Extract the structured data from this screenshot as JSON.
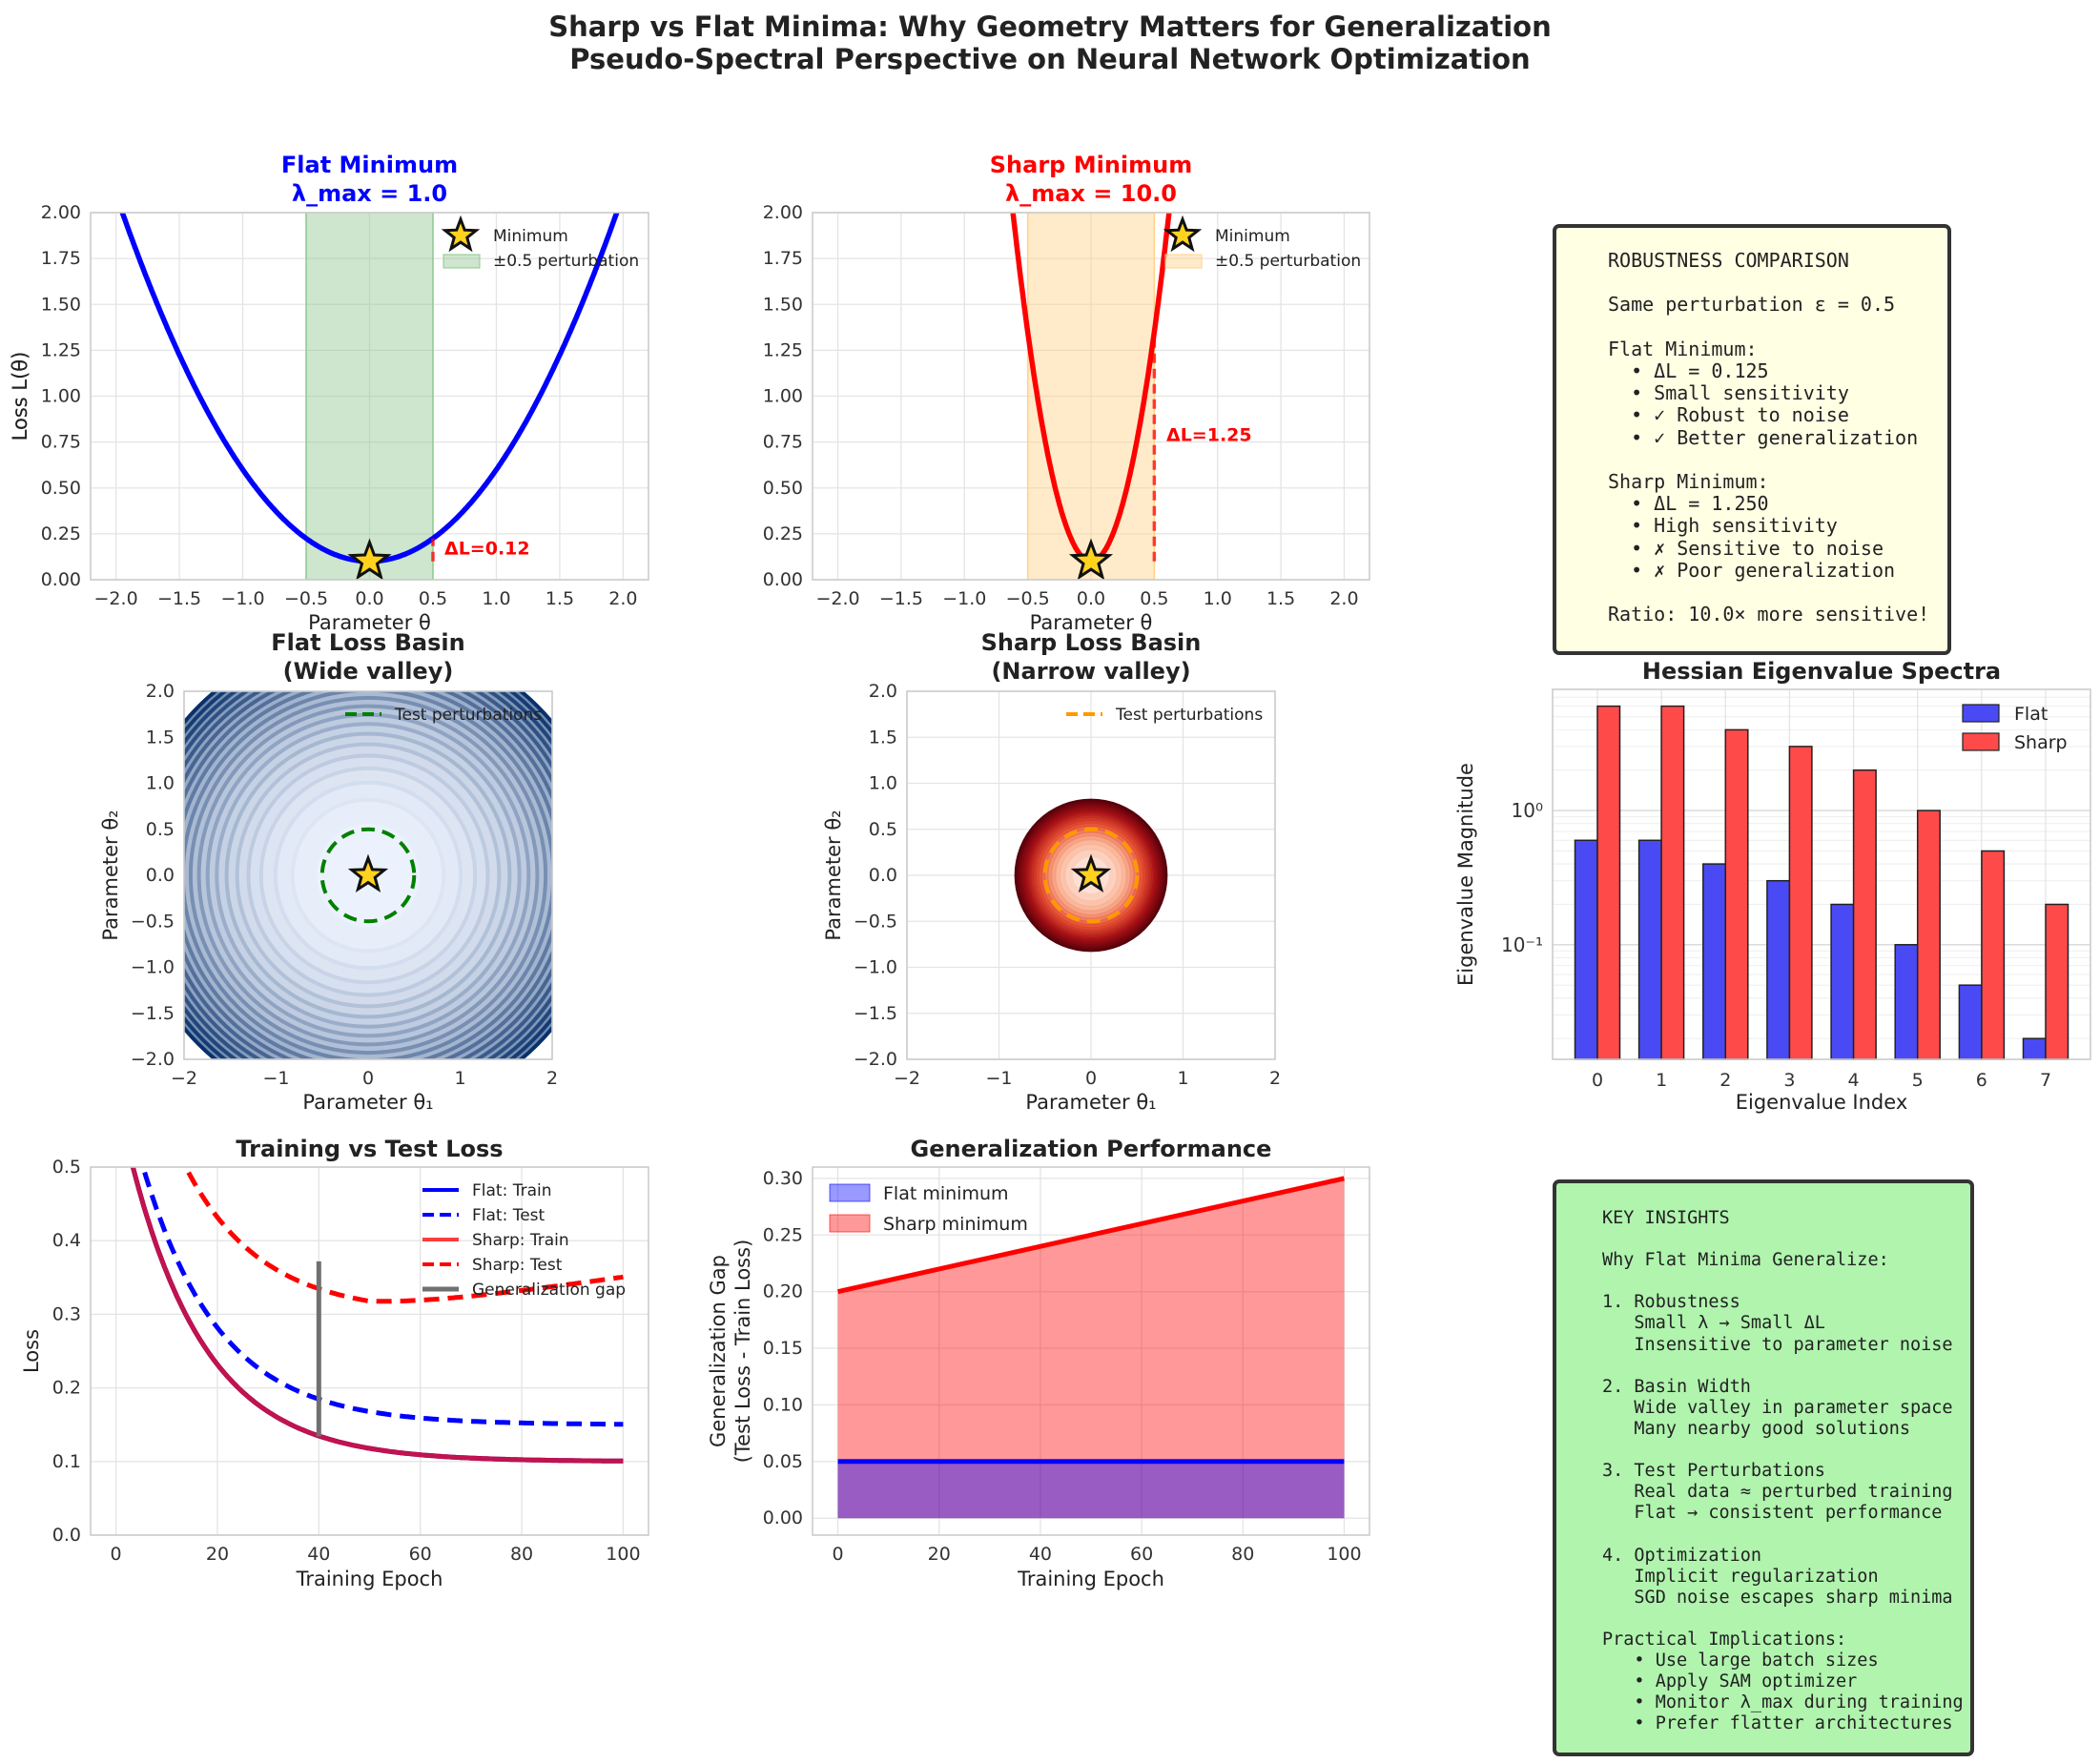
{
  "figure": {
    "title_line1": "Sharp vs Flat Minima: Why Geometry Matters for Generalization",
    "title_line2": "Pseudo-Spectral Perspective on Neural Network Optimization"
  },
  "colors": {
    "flat": "#0000ff",
    "sharp": "#ff0000",
    "flat_band": "#90c890",
    "sharp_band": "#ffd28a",
    "star": "#ffd21e",
    "flat_bar": "#4a4af5",
    "sharp_bar": "#ff4a4a",
    "robust_box_bg": "#ffffe4",
    "insights_box_bg": "#b0f4ae",
    "train_mix": "#c0144e",
    "gap_line": "#707070",
    "flat_ring": "#008000",
    "sharp_ring": "#ff9900"
  },
  "chart_data": [
    {
      "id": "flat_minimum",
      "type": "line",
      "title_line1": "Flat Minimum",
      "title_line2": "λ_max = 1.0",
      "xlabel": "Parameter θ",
      "ylabel": "Loss L(θ)",
      "xlim": [
        -2.2,
        2.2
      ],
      "ylim": [
        0,
        2
      ],
      "xticks": [
        "−2.0",
        "−1.5",
        "−1.0",
        "−0.5",
        "0.0",
        "0.5",
        "1.0",
        "1.5",
        "2.0"
      ],
      "xtick_values": [
        -2,
        -1.5,
        -1,
        -0.5,
        0,
        0.5,
        1,
        1.5,
        2
      ],
      "yticks": [
        "0.00",
        "0.25",
        "0.50",
        "0.75",
        "1.00",
        "1.25",
        "1.50",
        "1.75",
        "2.00"
      ],
      "ytick_values": [
        0,
        0.25,
        0.5,
        0.75,
        1,
        1.25,
        1.5,
        1.75,
        2
      ],
      "curvature": 1.0,
      "offset": 0.1,
      "minimum": {
        "x": 0,
        "y": 0.1
      },
      "perturbation": [
        -0.5,
        0.5
      ],
      "delta_label": "ΔL=0.12",
      "delta_value": 0.125,
      "legend": [
        "Minimum",
        "±0.5 perturbation"
      ]
    },
    {
      "id": "sharp_minimum",
      "type": "line",
      "title_line1": "Sharp Minimum",
      "title_line2": "λ_max = 10.0",
      "xlabel": "Parameter θ",
      "ylabel": "Loss L(θ)",
      "xlim": [
        -2.2,
        2.2
      ],
      "ylim": [
        0,
        2
      ],
      "xticks": [
        "−2.0",
        "−1.5",
        "−1.0",
        "−0.5",
        "0.0",
        "0.5",
        "1.0",
        "1.5",
        "2.0"
      ],
      "xtick_values": [
        -2,
        -1.5,
        -1,
        -0.5,
        0,
        0.5,
        1,
        1.5,
        2
      ],
      "yticks": [
        "0.00",
        "0.25",
        "0.50",
        "0.75",
        "1.00",
        "1.25",
        "1.50",
        "1.75",
        "2.00"
      ],
      "ytick_values": [
        0,
        0.25,
        0.5,
        0.75,
        1,
        1.25,
        1.5,
        1.75,
        2
      ],
      "curvature": 10.0,
      "offset": 0.1,
      "minimum": {
        "x": 0,
        "y": 0.1
      },
      "perturbation": [
        -0.5,
        0.5
      ],
      "delta_label": "ΔL=1.25",
      "delta_value": 1.25,
      "legend": [
        "Minimum",
        "±0.5 perturbation"
      ]
    },
    {
      "id": "flat_basin",
      "type": "contour",
      "title_line1": "Flat Loss Basin",
      "title_line2": "(Wide valley)",
      "xlabel": "Parameter θ₁",
      "ylabel": "Parameter θ₂",
      "xlim": [
        -2,
        2
      ],
      "ylim": [
        -2,
        2
      ],
      "xticks": [
        "−2",
        "−1",
        "0",
        "1",
        "2"
      ],
      "xtick_values": [
        -2,
        -1,
        0,
        1,
        2
      ],
      "yticks": [
        "−2.0",
        "−1.5",
        "−1.0",
        "−0.5",
        "0.0",
        "0.5",
        "1.0",
        "1.5",
        "2.0"
      ],
      "ytick_values": [
        -2,
        -1.5,
        -1,
        -0.5,
        0,
        0.5,
        1,
        1.5,
        2
      ],
      "ring_radius": 0.5,
      "max_radius": 2.6,
      "levels": 20,
      "legend": [
        "Test perturbations"
      ]
    },
    {
      "id": "sharp_basin",
      "type": "contour",
      "title_line1": "Sharp Loss Basin",
      "title_line2": "(Narrow valley)",
      "xlabel": "Parameter θ₁",
      "ylabel": "Parameter θ₂",
      "xlim": [
        -2,
        2
      ],
      "ylim": [
        -2,
        2
      ],
      "xticks": [
        "−2",
        "−1",
        "0",
        "1",
        "2"
      ],
      "xtick_values": [
        -2,
        -1,
        0,
        1,
        2
      ],
      "yticks": [
        "−2.0",
        "−1.5",
        "−1.0",
        "−0.5",
        "0.0",
        "0.5",
        "1.0",
        "1.5",
        "2.0"
      ],
      "ytick_values": [
        -2,
        -1.5,
        -1,
        -0.5,
        0,
        0.5,
        1,
        1.5,
        2
      ],
      "ring_radius": 0.5,
      "max_radius": 0.82,
      "levels": 20,
      "legend": [
        "Test perturbations"
      ]
    },
    {
      "id": "hessian_spectra",
      "type": "bar",
      "title": "Hessian Eigenvalue Spectra",
      "xlabel": "Eigenvalue Index",
      "ylabel": "Eigenvalue Magnitude",
      "yscale": "log",
      "ylim": [
        0.014,
        8
      ],
      "categories": [
        "0",
        "1",
        "2",
        "3",
        "4",
        "5",
        "6",
        "7"
      ],
      "ytick_labels": [
        "10⁰",
        "10⁻¹"
      ],
      "ytick_values": [
        1,
        0.1
      ],
      "series": [
        {
          "name": "Flat",
          "values": [
            0.6,
            0.6,
            0.4,
            0.3,
            0.2,
            0.1,
            0.05,
            0.02
          ]
        },
        {
          "name": "Sharp",
          "values": [
            6.0,
            6.0,
            4.0,
            3.0,
            2.0,
            1.0,
            0.5,
            0.2
          ]
        }
      ]
    },
    {
      "id": "train_test_loss",
      "type": "line",
      "title": "Training vs Test Loss",
      "xlabel": "Training Epoch",
      "ylabel": "Loss",
      "xlim": [
        -5,
        105
      ],
      "ylim": [
        0,
        0.5
      ],
      "xticks": [
        "0",
        "20",
        "40",
        "60",
        "80",
        "100"
      ],
      "xtick_values": [
        0,
        20,
        40,
        60,
        80,
        100
      ],
      "yticks": [
        "0.0",
        "0.1",
        "0.2",
        "0.3",
        "0.4",
        "0.5"
      ],
      "ytick_values": [
        0,
        0.1,
        0.2,
        0.3,
        0.4,
        0.5
      ],
      "series": [
        {
          "name": "Flat: Train",
          "style": "solid",
          "base": 0.1,
          "amp": 0.5,
          "tau": 15
        },
        {
          "name": "Flat: Test",
          "style": "dashed",
          "base": 0.15,
          "amp": 0.5,
          "tau": 15
        },
        {
          "name": "Sharp: Train",
          "style": "solid",
          "base": 0.1,
          "amp": 0.5,
          "tau": 15
        },
        {
          "name": "Sharp: Test",
          "style": "dashed",
          "base": 0.3,
          "amp": 0.5,
          "tau": 15,
          "growth": 0.001
        }
      ],
      "gap_marker": {
        "name": "Generalization gap",
        "epoch": 40,
        "low": 0.134,
        "high": 0.372
      }
    },
    {
      "id": "generalization_performance",
      "type": "area",
      "title": "Generalization Performance",
      "xlabel": "Training Epoch",
      "ylabel_line1": "Generalization Gap",
      "ylabel_line2": "(Test Loss - Train Loss)",
      "xlim": [
        -5,
        105
      ],
      "ylim": [
        -0.015,
        0.31
      ],
      "xticks": [
        "0",
        "20",
        "40",
        "60",
        "80",
        "100"
      ],
      "xtick_values": [
        0,
        20,
        40,
        60,
        80,
        100
      ],
      "yticks": [
        "0.00",
        "0.05",
        "0.10",
        "0.15",
        "0.20",
        "0.25",
        "0.30"
      ],
      "ytick_values": [
        0,
        0.05,
        0.1,
        0.15,
        0.2,
        0.25,
        0.3
      ],
      "series": [
        {
          "name": "Flat minimum",
          "x": [
            0,
            100
          ],
          "values": [
            0.05,
            0.05
          ]
        },
        {
          "name": "Sharp minimum",
          "x": [
            0,
            100
          ],
          "values": [
            0.2,
            0.3
          ]
        }
      ]
    }
  ],
  "robustness_box": {
    "lines": [
      "ROBUSTNESS COMPARISON",
      "",
      "Same perturbation ε = 0.5",
      "",
      "Flat Minimum:",
      "  • ΔL = 0.125",
      "  • Small sensitivity",
      "  • ✓ Robust to noise",
      "  • ✓ Better generalization",
      "",
      "Sharp Minimum:",
      "  • ΔL = 1.250",
      "  • High sensitivity",
      "  • ✗ Sensitive to noise",
      "  • ✗ Poor generalization",
      "",
      "Ratio: 10.0× more sensitive!"
    ]
  },
  "insights_box": {
    "lines": [
      "KEY INSIGHTS",
      "",
      "Why Flat Minima Generalize:",
      "",
      "1. Robustness",
      "   Small λ → Small ΔL",
      "   Insensitive to parameter noise",
      "",
      "2. Basin Width",
      "   Wide valley in parameter space",
      "   Many nearby good solutions",
      "",
      "3. Test Perturbations",
      "   Real data ≈ perturbed training",
      "   Flat → consistent performance",
      "",
      "4. Optimization",
      "   Implicit regularization",
      "   SGD noise escapes sharp minima",
      "",
      "Practical Implications:",
      "   • Use large batch sizes",
      "   • Apply SAM optimizer",
      "   • Monitor λ_max during training",
      "   • Prefer flatter architectures"
    ]
  }
}
